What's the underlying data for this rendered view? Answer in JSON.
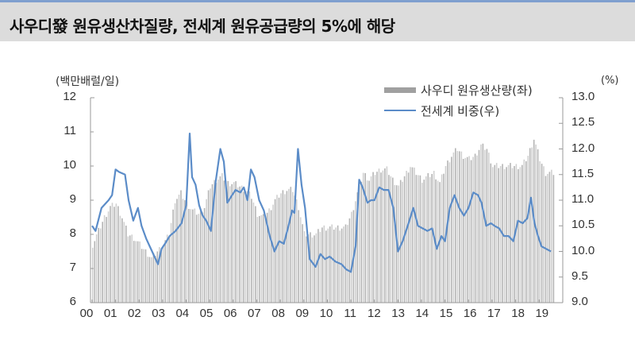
{
  "header": {
    "title": "사우디發 원유생산차질량, 전세계 원유공급량의 5%에 해당"
  },
  "chart_data": {
    "type": "bar+line",
    "title": "사우디發 원유생산차질량, 전세계 원유공급량의 5%에 해당",
    "left_axis": {
      "unit": "(백만배럴/일)",
      "ticks": [
        "12",
        "11",
        "10",
        "9",
        "8",
        "7",
        "6"
      ],
      "ylim": [
        6,
        12
      ]
    },
    "right_axis": {
      "unit": "(%)",
      "ticks": [
        "13.0",
        "12.5",
        "12.0",
        "11.5",
        "11.0",
        "10.5",
        "10.0",
        "9.5",
        "9.0"
      ],
      "ylim": [
        9.0,
        13.0
      ]
    },
    "x_ticks": [
      "00",
      "01",
      "02",
      "03",
      "04",
      "05",
      "06",
      "07",
      "08",
      "09",
      "10",
      "11",
      "12",
      "13",
      "14",
      "15",
      "16",
      "17",
      "18",
      "19"
    ],
    "legend": [
      {
        "name": "사우디 원유생산량(좌)",
        "type": "bar",
        "color": "#a0a0a0"
      },
      {
        "name": "전세계 비중(우)",
        "type": "line",
        "color": "#5b8cc8"
      }
    ],
    "series": [
      {
        "name": "사우디 원유생산량(좌)",
        "axis": "left",
        "x": [
          2000.0,
          2000.25,
          2000.5,
          2000.75,
          2001.0,
          2001.25,
          2001.5,
          2001.75,
          2002.0,
          2002.25,
          2002.5,
          2002.75,
          2003.0,
          2003.25,
          2003.5,
          2003.75,
          2004.0,
          2004.25,
          2004.5,
          2004.75,
          2005.0,
          2005.25,
          2005.5,
          2005.75,
          2006.0,
          2006.25,
          2006.5,
          2006.75,
          2007.0,
          2007.25,
          2007.5,
          2007.75,
          2008.0,
          2008.25,
          2008.5,
          2008.75,
          2009.0,
          2009.25,
          2009.5,
          2009.75,
          2010.0,
          2010.25,
          2010.5,
          2010.75,
          2011.0,
          2011.25,
          2011.5,
          2011.75,
          2012.0,
          2012.25,
          2012.5,
          2012.75,
          2013.0,
          2013.25,
          2013.5,
          2013.75,
          2014.0,
          2014.25,
          2014.5,
          2014.75,
          2015.0,
          2015.25,
          2015.5,
          2015.75,
          2016.0,
          2016.25,
          2016.5,
          2016.75,
          2017.0,
          2017.25,
          2017.5,
          2017.75,
          2018.0,
          2018.25,
          2018.5,
          2018.75,
          2019.0,
          2019.25,
          2019.5
        ],
        "values": [
          7.7,
          8.1,
          8.5,
          8.8,
          8.9,
          8.5,
          8.0,
          7.9,
          7.7,
          7.5,
          7.3,
          7.5,
          7.7,
          8.0,
          9.0,
          9.2,
          8.9,
          8.7,
          8.6,
          8.8,
          9.4,
          9.6,
          9.7,
          9.5,
          9.5,
          9.4,
          9.3,
          9.1,
          8.6,
          8.5,
          8.7,
          9.0,
          9.2,
          9.3,
          9.3,
          8.8,
          8.0,
          8.0,
          8.0,
          8.2,
          8.2,
          8.2,
          8.2,
          8.2,
          8.6,
          9.2,
          9.8,
          9.6,
          9.8,
          9.9,
          9.9,
          9.6,
          9.4,
          9.7,
          10.0,
          9.8,
          9.6,
          9.7,
          9.8,
          9.5,
          10.0,
          10.3,
          10.5,
          10.3,
          10.2,
          10.3,
          10.6,
          10.5,
          10.0,
          10.0,
          10.0,
          10.0,
          10.0,
          10.0,
          10.3,
          10.8,
          10.2,
          9.8,
          9.8
        ]
      },
      {
        "name": "전세계 비중(우)",
        "axis": "right",
        "x": [
          2000.0,
          2000.15,
          2000.4,
          2000.7,
          2000.85,
          2001.0,
          2001.15,
          2001.4,
          2001.55,
          2001.75,
          2001.95,
          2002.1,
          2002.3,
          2002.55,
          2002.8,
          2002.95,
          2003.1,
          2003.3,
          2003.55,
          2003.8,
          2004.0,
          2004.15,
          2004.25,
          2004.4,
          2004.55,
          2004.7,
          2004.85,
          2005.05,
          2005.25,
          2005.45,
          2005.6,
          2005.75,
          2005.95,
          2006.1,
          2006.3,
          2006.45,
          2006.6,
          2006.75,
          2006.9,
          2007.1,
          2007.3,
          2007.55,
          2007.75,
          2007.95,
          2008.15,
          2008.35,
          2008.5,
          2008.6,
          2008.75,
          2008.9,
          2009.05,
          2009.25,
          2009.5,
          2009.7,
          2009.9,
          2010.1,
          2010.35,
          2010.6,
          2010.8,
          2011.0,
          2011.2,
          2011.35,
          2011.5,
          2011.7,
          2011.85,
          2012.0,
          2012.2,
          2012.4,
          2012.6,
          2012.8,
          2013.0,
          2013.2,
          2013.45,
          2013.65,
          2013.85,
          2014.05,
          2014.25,
          2014.45,
          2014.65,
          2014.85,
          2015.0,
          2015.2,
          2015.4,
          2015.6,
          2015.8,
          2016.0,
          2016.2,
          2016.4,
          2016.55,
          2016.75,
          2016.95,
          2017.1,
          2017.3,
          2017.5,
          2017.7,
          2017.9,
          2018.1,
          2018.3,
          2018.5,
          2018.65,
          2018.8,
          2018.95,
          2019.1,
          2019.3,
          2019.5
        ],
        "values": [
          10.5,
          10.4,
          10.85,
          11.0,
          11.1,
          11.6,
          11.55,
          11.5,
          11.0,
          10.6,
          10.85,
          10.5,
          10.25,
          10.0,
          9.75,
          10.05,
          10.15,
          10.3,
          10.4,
          10.55,
          10.9,
          12.3,
          11.45,
          11.3,
          10.9,
          10.7,
          10.6,
          10.4,
          11.35,
          12.0,
          11.75,
          10.95,
          11.1,
          11.2,
          11.15,
          11.25,
          11.0,
          11.6,
          11.45,
          11.0,
          10.8,
          10.3,
          10.0,
          10.2,
          10.15,
          10.5,
          10.8,
          10.75,
          12.0,
          11.3,
          10.85,
          9.85,
          9.7,
          9.95,
          9.85,
          9.9,
          9.8,
          9.75,
          9.65,
          9.6,
          10.1,
          11.4,
          11.25,
          10.95,
          11.0,
          11.0,
          11.25,
          11.2,
          11.2,
          10.85,
          10.0,
          10.2,
          10.55,
          10.85,
          10.5,
          10.45,
          10.4,
          10.45,
          10.05,
          10.3,
          10.2,
          10.85,
          11.1,
          10.85,
          10.7,
          10.85,
          11.15,
          11.1,
          10.95,
          10.5,
          10.55,
          10.5,
          10.45,
          10.3,
          10.3,
          10.2,
          10.6,
          10.55,
          10.65,
          11.05,
          10.55,
          10.3,
          10.1,
          10.05,
          10.0
        ]
      }
    ]
  }
}
